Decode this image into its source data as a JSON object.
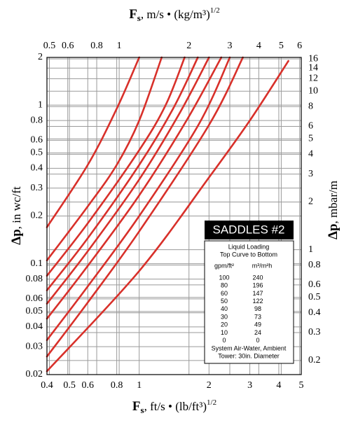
{
  "chart_data": {
    "type": "line",
    "title": "SADDLES #2",
    "x_label": {
      "main": "F",
      "sub": "s",
      "rest": ", ft/s • (lb/ft³)",
      "sup": "1/2"
    },
    "x2_label": {
      "main": "F",
      "sub": "s",
      "rest": ", m/s • (kg/m³)",
      "sup": "1/2"
    },
    "y_label": {
      "main": "Δp",
      "rest": ", in wc/ft"
    },
    "y2_label": {
      "main": "Δp",
      "rest": ", mbar/m"
    },
    "log_x": true,
    "log_y": true,
    "grid": true,
    "color": "#d8302a",
    "xlim": [
      0.4,
      5
    ],
    "xticks": [
      0.4,
      0.5,
      0.6,
      0.8,
      1,
      2,
      3,
      4,
      5
    ],
    "x2lim": [
      0.488,
      6.1
    ],
    "x2ticks": [
      0.5,
      0.6,
      0.8,
      1,
      2,
      3,
      4,
      5,
      6
    ],
    "ylim": [
      0.02,
      2
    ],
    "yticks": [
      0.02,
      0.03,
      0.04,
      0.05,
      0.06,
      0.08,
      0.1,
      0.2,
      0.3,
      0.4,
      0.5,
      0.6,
      0.8,
      1,
      2
    ],
    "y2lim": [
      0.163,
      16.34
    ],
    "y2ticks": [
      0.2,
      0.3,
      0.4,
      0.5,
      0.6,
      0.8,
      1,
      2,
      3,
      4,
      5,
      6,
      8,
      10,
      12,
      14,
      16
    ],
    "legend_heading": [
      "Liquid Loading",
      "Top Curve to Bottom"
    ],
    "legend_columns": [
      "gpm/ft²",
      "m³/m²h"
    ],
    "legend_notes": [
      "System Air-Water, Ambient",
      "Tower: 30in. Diameter"
    ],
    "series": [
      {
        "name": "100",
        "metric": "240",
        "x": [
          0.4,
          0.6,
          0.8,
          1.0
        ],
        "values": [
          0.17,
          0.42,
          0.95,
          2.0
        ]
      },
      {
        "name": "80",
        "metric": "196",
        "x": [
          0.4,
          0.6,
          0.8,
          1.0,
          1.25
        ],
        "values": [
          0.105,
          0.23,
          0.42,
          0.8,
          2.0
        ]
      },
      {
        "name": "60",
        "metric": "147",
        "x": [
          0.4,
          0.6,
          1.0,
          1.3,
          1.57
        ],
        "values": [
          0.084,
          0.18,
          0.52,
          1.0,
          2.0
        ]
      },
      {
        "name": "50",
        "metric": "122",
        "x": [
          0.4,
          0.6,
          1.0,
          1.4,
          1.79
        ],
        "values": [
          0.068,
          0.145,
          0.42,
          0.95,
          2.0
        ]
      },
      {
        "name": "40",
        "metric": "98",
        "x": [
          0.4,
          0.6,
          1.0,
          1.5,
          2.0
        ],
        "values": [
          0.056,
          0.12,
          0.34,
          0.9,
          2.0
        ]
      },
      {
        "name": "30",
        "metric": "73",
        "x": [
          0.4,
          0.6,
          1.0,
          1.6,
          2.26
        ],
        "values": [
          0.045,
          0.097,
          0.27,
          0.8,
          2.0
        ]
      },
      {
        "name": "20",
        "metric": "49",
        "x": [
          0.4,
          0.6,
          1.0,
          1.8,
          2.46
        ],
        "values": [
          0.033,
          0.072,
          0.2,
          0.75,
          2.0
        ]
      },
      {
        "name": "10",
        "metric": "24",
        "x": [
          0.4,
          0.6,
          1.0,
          2.0,
          2.8
        ],
        "values": [
          0.026,
          0.057,
          0.16,
          0.75,
          2.0
        ]
      },
      {
        "name": "0",
        "metric": "0",
        "x": [
          0.4,
          1.0,
          2.0,
          3.0,
          4.4
        ],
        "values": [
          0.021,
          0.09,
          0.35,
          0.8,
          1.9
        ]
      }
    ]
  }
}
